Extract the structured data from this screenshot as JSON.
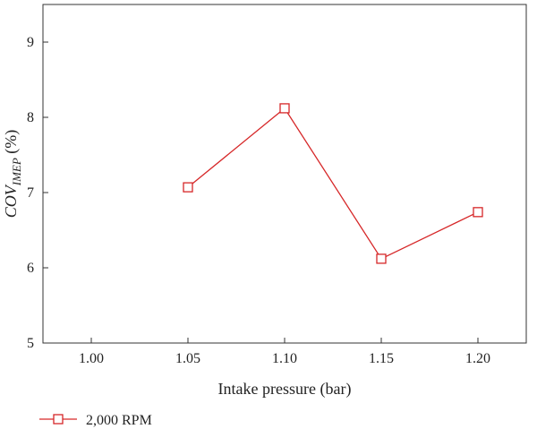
{
  "chart_data": {
    "type": "line",
    "xlabel": "Intake pressure (bar)",
    "ylabel_main": "COV",
    "ylabel_sub": "IMEP",
    "ylabel_unit": " (%)",
    "xlim": [
      0.975,
      1.225
    ],
    "ylim": [
      5,
      9.5
    ],
    "x_ticks": [
      "1.00",
      "1.05",
      "1.10",
      "1.15",
      "1.20"
    ],
    "y_ticks": [
      "5",
      "6",
      "7",
      "8",
      "9"
    ],
    "grid": false,
    "legend_position": "bottom-left",
    "series": [
      {
        "name": "2,000 RPM",
        "color": "#d62728",
        "marker": "open-square",
        "points": [
          {
            "x": 1.05,
            "y": 7.07
          },
          {
            "x": 1.1,
            "y": 8.12
          },
          {
            "x": 1.15,
            "y": 6.12
          },
          {
            "x": 1.2,
            "y": 6.74
          }
        ]
      }
    ]
  }
}
